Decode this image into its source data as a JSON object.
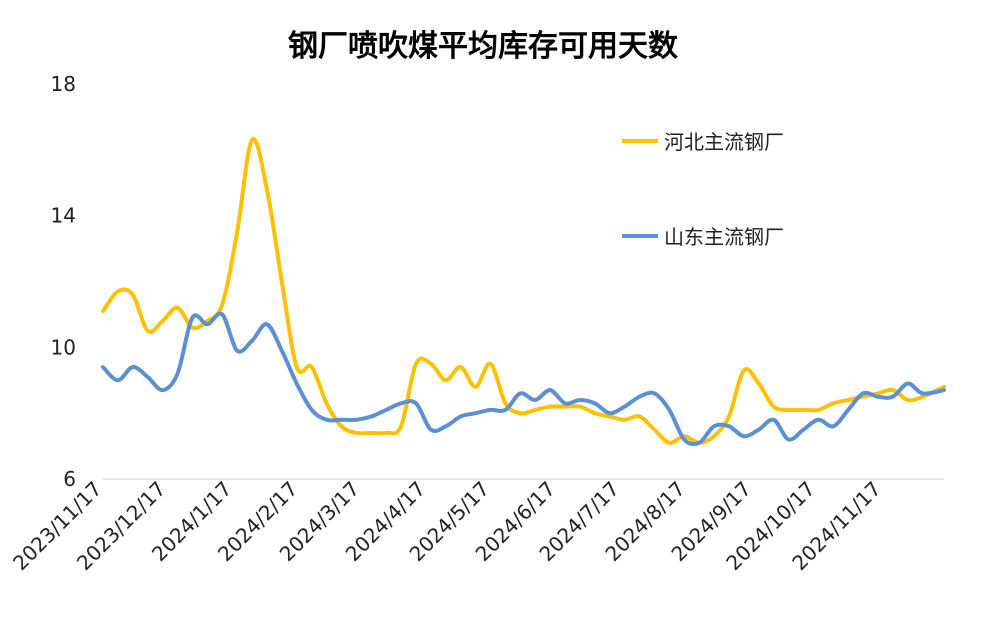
{
  "chart_data": {
    "type": "line",
    "title": "钢厂喷吹煤平均库存可用天数",
    "xlabel": "",
    "ylabel": "",
    "ylim": [
      6,
      18
    ],
    "yticks": [
      "18",
      "14",
      "10",
      "6"
    ],
    "x_range": [
      "2023-11-17",
      "2024-12-16"
    ],
    "xticks": [
      "2023/11/17",
      "2023/12/17",
      "2024/1/17",
      "2024/2/17",
      "2024/3/17",
      "2024/4/17",
      "2024/5/17",
      "2024/6/17",
      "2024/7/17",
      "2024/8/17",
      "2024/9/17",
      "2024/10/17",
      "2024/11/17"
    ],
    "legend_position": "top-right",
    "grid": false,
    "series": [
      {
        "name": "河北主流钢厂",
        "color": "#FFC000",
        "points": [
          [
            "2023-11-17",
            11.1
          ],
          [
            "2023-11-24",
            11.7
          ],
          [
            "2023-12-01",
            11.6
          ],
          [
            "2023-12-08",
            10.5
          ],
          [
            "2023-12-15",
            10.8
          ],
          [
            "2023-12-22",
            11.2
          ],
          [
            "2023-12-29",
            10.6
          ],
          [
            "2024-01-05",
            10.8
          ],
          [
            "2024-01-12",
            11.3
          ],
          [
            "2024-01-19",
            13.5
          ],
          [
            "2024-01-26",
            16.3
          ],
          [
            "2024-02-02",
            14.8
          ],
          [
            "2024-02-09",
            12.0
          ],
          [
            "2024-02-16",
            9.4
          ],
          [
            "2024-02-23",
            9.4
          ],
          [
            "2024-03-01",
            8.3
          ],
          [
            "2024-03-08",
            7.6
          ],
          [
            "2024-03-15",
            7.4
          ],
          [
            "2024-03-22",
            7.4
          ],
          [
            "2024-03-29",
            7.4
          ],
          [
            "2024-04-05",
            7.6
          ],
          [
            "2024-04-12",
            9.5
          ],
          [
            "2024-04-19",
            9.5
          ],
          [
            "2024-04-26",
            9.0
          ],
          [
            "2024-05-03",
            9.4
          ],
          [
            "2024-05-10",
            8.8
          ],
          [
            "2024-05-17",
            9.5
          ],
          [
            "2024-05-24",
            8.3
          ],
          [
            "2024-05-31",
            8.0
          ],
          [
            "2024-06-07",
            8.1
          ],
          [
            "2024-06-14",
            8.2
          ],
          [
            "2024-06-21",
            8.2
          ],
          [
            "2024-06-28",
            8.2
          ],
          [
            "2024-07-05",
            8.0
          ],
          [
            "2024-07-12",
            7.9
          ],
          [
            "2024-07-19",
            7.8
          ],
          [
            "2024-07-26",
            7.9
          ],
          [
            "2024-08-02",
            7.5
          ],
          [
            "2024-08-09",
            7.1
          ],
          [
            "2024-08-16",
            7.3
          ],
          [
            "2024-08-23",
            7.1
          ],
          [
            "2024-08-30",
            7.3
          ],
          [
            "2024-09-06",
            7.9
          ],
          [
            "2024-09-13",
            9.3
          ],
          [
            "2024-09-20",
            8.9
          ],
          [
            "2024-09-27",
            8.2
          ],
          [
            "2024-10-04",
            8.1
          ],
          [
            "2024-10-11",
            8.1
          ],
          [
            "2024-10-18",
            8.1
          ],
          [
            "2024-10-25",
            8.3
          ],
          [
            "2024-11-01",
            8.4
          ],
          [
            "2024-11-08",
            8.5
          ],
          [
            "2024-11-15",
            8.6
          ],
          [
            "2024-11-22",
            8.7
          ],
          [
            "2024-11-29",
            8.4
          ],
          [
            "2024-12-06",
            8.5
          ],
          [
            "2024-12-16",
            8.8
          ]
        ]
      },
      {
        "name": "山东主流钢厂",
        "color": "#5B8FD6",
        "points": [
          [
            "2023-11-17",
            9.4
          ],
          [
            "2023-11-24",
            9.0
          ],
          [
            "2023-12-01",
            9.4
          ],
          [
            "2023-12-08",
            9.1
          ],
          [
            "2023-12-15",
            8.7
          ],
          [
            "2023-12-22",
            9.2
          ],
          [
            "2023-12-29",
            10.9
          ],
          [
            "2024-01-05",
            10.7
          ],
          [
            "2024-01-12",
            11.0
          ],
          [
            "2024-01-19",
            9.9
          ],
          [
            "2024-01-26",
            10.2
          ],
          [
            "2024-02-02",
            10.7
          ],
          [
            "2024-02-09",
            9.9
          ],
          [
            "2024-02-16",
            8.9
          ],
          [
            "2024-02-23",
            8.1
          ],
          [
            "2024-03-01",
            7.8
          ],
          [
            "2024-03-08",
            7.8
          ],
          [
            "2024-03-15",
            7.8
          ],
          [
            "2024-03-22",
            7.9
          ],
          [
            "2024-03-29",
            8.1
          ],
          [
            "2024-04-05",
            8.3
          ],
          [
            "2024-04-12",
            8.3
          ],
          [
            "2024-04-19",
            7.5
          ],
          [
            "2024-04-26",
            7.6
          ],
          [
            "2024-05-03",
            7.9
          ],
          [
            "2024-05-10",
            8.0
          ],
          [
            "2024-05-17",
            8.1
          ],
          [
            "2024-05-24",
            8.1
          ],
          [
            "2024-05-31",
            8.6
          ],
          [
            "2024-06-07",
            8.4
          ],
          [
            "2024-06-14",
            8.7
          ],
          [
            "2024-06-21",
            8.3
          ],
          [
            "2024-06-28",
            8.4
          ],
          [
            "2024-07-05",
            8.3
          ],
          [
            "2024-07-12",
            8.0
          ],
          [
            "2024-07-19",
            8.2
          ],
          [
            "2024-07-26",
            8.5
          ],
          [
            "2024-08-02",
            8.6
          ],
          [
            "2024-08-09",
            8.1
          ],
          [
            "2024-08-16",
            7.2
          ],
          [
            "2024-08-23",
            7.1
          ],
          [
            "2024-08-30",
            7.6
          ],
          [
            "2024-09-06",
            7.6
          ],
          [
            "2024-09-13",
            7.3
          ],
          [
            "2024-09-20",
            7.5
          ],
          [
            "2024-09-27",
            7.8
          ],
          [
            "2024-10-04",
            7.2
          ],
          [
            "2024-10-11",
            7.5
          ],
          [
            "2024-10-18",
            7.8
          ],
          [
            "2024-10-25",
            7.6
          ],
          [
            "2024-11-01",
            8.1
          ],
          [
            "2024-11-08",
            8.6
          ],
          [
            "2024-11-15",
            8.5
          ],
          [
            "2024-11-22",
            8.5
          ],
          [
            "2024-11-29",
            8.9
          ],
          [
            "2024-12-06",
            8.6
          ],
          [
            "2024-12-16",
            8.7
          ]
        ]
      }
    ]
  }
}
